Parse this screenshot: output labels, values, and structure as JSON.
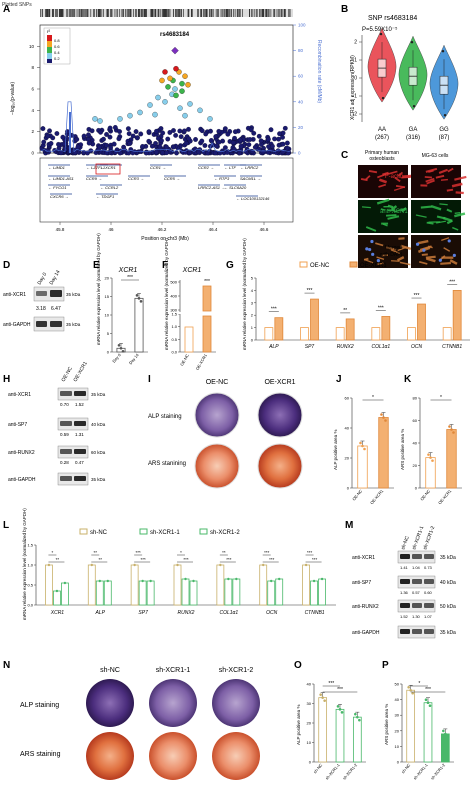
{
  "panels": {
    "A": "A",
    "B": "B",
    "C": "C",
    "D": "D",
    "E": "E",
    "F": "F",
    "G": "G",
    "H": "H",
    "I": "I",
    "J": "J",
    "K": "K",
    "L": "L",
    "M": "M",
    "N": "N",
    "O": "O",
    "P": "P"
  },
  "panel_a": {
    "legend_snps": "Plotted SNPs",
    "snp_label": "rs4683184",
    "r2_title": "r²",
    "r2_levels": [
      "0.8",
      "0.6",
      "0.4",
      "0.2"
    ],
    "y_left_label": "−log₁₀(p-value)",
    "y_left_ticks": [
      "0",
      "2",
      "4",
      "6",
      "8",
      "10"
    ],
    "y_right_label": "Recombination rate (cM/Mb)",
    "y_right_ticks": [
      "0",
      "20",
      "40",
      "60",
      "80",
      "100"
    ],
    "x_label": "Position on chr3 (Mb)",
    "x_ticks": [
      "45.8",
      "46",
      "46.2",
      "46.4",
      "46.6"
    ],
    "genes": [
      "LIMD1",
      "LZTFL1",
      "XCR1",
      "CCR1",
      "CCR2",
      "LTF",
      "LRRC2",
      "LIMD1-AS1",
      "CCR9",
      "CCR3",
      "CCR5",
      "RTP3",
      "SACM1L",
      "FYCO1",
      "CCRL2",
      "LRRC2-AS1",
      "SLC6A20",
      "CXCR6",
      "TDGF1",
      "LOC100132146"
    ],
    "colors": {
      "r08": "#d7191c",
      "r06": "#f5a623",
      "r04": "#3cb44b",
      "r02": "#87ceeb",
      "r00": "#1a1a6e",
      "lead": "#7b2fbe",
      "recomb": "#4a6fd1"
    }
  },
  "panel_b": {
    "title": "SNP rs4683184",
    "pvalue": "P=5.59X10⁻⁵",
    "y_label": "XCR1 adj expression(RPKM)",
    "groups": [
      "AA",
      "GA",
      "GG"
    ],
    "counts": [
      "(267)",
      "(316)",
      "(87)"
    ],
    "y_ticks": [
      "2",
      "1",
      "0",
      "-1",
      "-2"
    ],
    "colors": [
      "#e8414a",
      "#35b24a",
      "#3a8dd6"
    ]
  },
  "panel_c": {
    "col1": "Primary human osteoblasts",
    "col2": "MG-63 cells",
    "row1": "F-actin",
    "row2": "anti-XCR1",
    "row3": "Merged with DAPI"
  },
  "panel_d": {
    "day0": "Day 0",
    "day14": "Day 14",
    "row1": "anti-XCR1",
    "row2": "anti-GAPDH",
    "kda": "35 kDa",
    "ratio1": "3.18",
    "ratio2": "6.47"
  },
  "panel_e": {
    "title": "XCR1",
    "y_label": "mRNA relative expression level (normalized by GAPDH)",
    "categories": [
      "Day 0",
      "Day 14"
    ],
    "y_ticks": [
      "0",
      "5",
      "10",
      "15",
      "20"
    ],
    "sig": "***"
  },
  "panel_f": {
    "title": "XCR1",
    "y_label": "mRNA relative expression level (normalized by GAPDH)",
    "categories": [
      "OE-NC",
      "OE-XCR1"
    ],
    "y_ticks": [
      "0.0",
      "0.5",
      "1.0",
      "1.5",
      "300",
      "400",
      "500"
    ],
    "sig": "***"
  },
  "panel_g": {
    "legend": [
      "OE-NC",
      "OE-XCR1"
    ],
    "y_label": "mRNA relative expression level (normalized by GAPDH)",
    "genes": [
      "ALP",
      "SP7",
      "RUNX2",
      "COL1α1",
      "OCN",
      "CTNNB1"
    ],
    "sig": [
      "***",
      "***",
      "**",
      "***",
      "***",
      "***"
    ],
    "y_ticks": [
      "0",
      "1",
      "2",
      "3",
      "4",
      "5"
    ]
  },
  "panel_h": {
    "lanes": [
      "OE-NC",
      "OE-XCR1"
    ],
    "rows": [
      "anti-XCR1",
      "anti-SP7",
      "anti-RUNX2",
      "anti-GAPDH"
    ],
    "kdas": [
      "35 kDa",
      "40 kDa",
      "60 kDa",
      "35 kDa"
    ],
    "ratios": [
      [
        "0.70",
        "1.52"
      ],
      [
        "0.59",
        "1.31"
      ],
      [
        "0.28",
        "0.47"
      ]
    ]
  },
  "panel_i": {
    "col1": "OE-NC",
    "col2": "OE-XCR1",
    "row1": "ALP staining",
    "row2": "ARS stanining"
  },
  "panel_j": {
    "y_label": "ALP positive area %",
    "categories": [
      "OE-NC",
      "OE-XCR1"
    ],
    "y_ticks": [
      "0",
      "20",
      "40",
      "60"
    ],
    "sig": "*"
  },
  "panel_k": {
    "y_label": "ARS positive area %",
    "categories": [
      "OE-NC",
      "OE-XCR1"
    ],
    "y_ticks": [
      "0",
      "20",
      "40",
      "60",
      "80"
    ],
    "sig": "*"
  },
  "panel_l": {
    "legend": [
      "sh-NC",
      "sh-XCR1-1",
      "sh-XCR1-2"
    ],
    "y_label": "mRNA relative expression level (normalized by GAPDH)",
    "genes": [
      "XCR1",
      "ALP",
      "SP7",
      "RUNX2",
      "COL1α1",
      "OCN",
      "CTNNB1"
    ],
    "y_ticks": [
      "0.0",
      "0.5",
      "1.0",
      "1.5"
    ],
    "sig_top": [
      "*",
      "**",
      "***",
      "*",
      "**",
      "***",
      "***"
    ],
    "sig_bottom": [
      "**",
      "**",
      "***",
      "***",
      "***",
      "***",
      "***"
    ]
  },
  "panel_m": {
    "lanes": [
      "sh-NC",
      "sh-XCR1-1",
      "sh-XCR1-2"
    ],
    "rows": [
      "anti-XCR1",
      "anti-SP7",
      "anti-RUNX2",
      "anti-GAPDH"
    ],
    "kdas": [
      "35 kDa",
      "40 kDa",
      "50 kDa",
      "35 kDa"
    ],
    "ratios": [
      [
        "1.41",
        "1.04",
        "0.73"
      ],
      [
        "1.36",
        "0.57",
        "0.60"
      ],
      [
        "1.52",
        "1.30",
        "1.07"
      ]
    ]
  },
  "panel_n": {
    "cols": [
      "sh-NC",
      "sh-XCR1-1",
      "sh-XCR1-2"
    ],
    "row1": "ALP staining",
    "row2": "ARS staining"
  },
  "panel_o": {
    "y_label": "ALP positive area %",
    "categories": [
      "sh-NC",
      "sh-XCR1-1",
      "sh-XCR1-2"
    ],
    "y_ticks": [
      "0",
      "10",
      "20",
      "30",
      "40"
    ],
    "sig": [
      "***",
      "***"
    ]
  },
  "panel_p": {
    "y_label": "ARS positive area %",
    "categories": [
      "sh-NC",
      "sh-XCR1-1",
      "sh-XCR1-2"
    ],
    "y_ticks": [
      "0",
      "10",
      "20",
      "30",
      "40",
      "50"
    ],
    "sig": [
      "*",
      "***"
    ]
  },
  "chart_data": [
    {
      "type": "bar",
      "panel": "E",
      "title": "XCR1",
      "categories": [
        "Day 0",
        "Day 14"
      ],
      "values": [
        1,
        14.5
      ],
      "ylim": [
        0,
        20
      ],
      "ylabel": "mRNA relative expression level (normalized by GAPDH)"
    },
    {
      "type": "bar",
      "panel": "F",
      "title": "XCR1",
      "categories": [
        "OE-NC",
        "OE-XCR1"
      ],
      "values": [
        1,
        450
      ],
      "ylabel": "mRNA relative expression level (normalized by GAPDH)"
    },
    {
      "type": "bar",
      "panel": "G",
      "categories": [
        "ALP",
        "SP7",
        "RUNX2",
        "COL1α1",
        "OCN",
        "CTNNB1"
      ],
      "series": [
        {
          "name": "OE-NC",
          "values": [
            1,
            1,
            1,
            1,
            1,
            1
          ]
        },
        {
          "name": "OE-XCR1",
          "values": [
            1.8,
            3.3,
            1.7,
            1.9,
            2.9,
            4.0
          ]
        }
      ],
      "ylim": [
        0,
        5
      ]
    },
    {
      "type": "bar",
      "panel": "J",
      "categories": [
        "OE-NC",
        "OE-XCR1"
      ],
      "values": [
        28,
        47
      ],
      "ylim": [
        0,
        60
      ],
      "ylabel": "ALP positive area %"
    },
    {
      "type": "bar",
      "panel": "K",
      "categories": [
        "OE-NC",
        "OE-XCR1"
      ],
      "values": [
        27,
        52
      ],
      "ylim": [
        0,
        80
      ],
      "ylabel": "ARS positive area %"
    },
    {
      "type": "bar",
      "panel": "L",
      "categories": [
        "XCR1",
        "ALP",
        "SP7",
        "RUNX2",
        "COL1α1",
        "OCN",
        "CTNNB1"
      ],
      "series": [
        {
          "name": "sh-NC",
          "values": [
            1,
            1,
            1,
            1,
            1,
            1,
            1
          ]
        },
        {
          "name": "sh-XCR1-1",
          "values": [
            0.35,
            0.6,
            0.6,
            0.65,
            0.65,
            0.6,
            0.6
          ]
        },
        {
          "name": "sh-XCR1-2",
          "values": [
            0.55,
            0.6,
            0.6,
            0.6,
            0.65,
            0.65,
            0.65
          ]
        }
      ],
      "ylim": [
        0,
        1.5
      ]
    },
    {
      "type": "bar",
      "panel": "O",
      "categories": [
        "sh-NC",
        "sh-XCR1-1",
        "sh-XCR1-2"
      ],
      "values": [
        33,
        27,
        23
      ],
      "ylim": [
        0,
        40
      ],
      "ylabel": "ALP positive area %"
    },
    {
      "type": "bar",
      "panel": "P",
      "categories": [
        "sh-NC",
        "sh-XCR1-1",
        "sh-XCR1-2"
      ],
      "values": [
        46,
        38,
        18
      ],
      "ylim": [
        0,
        50
      ],
      "ylabel": "ARS positive area %"
    }
  ]
}
